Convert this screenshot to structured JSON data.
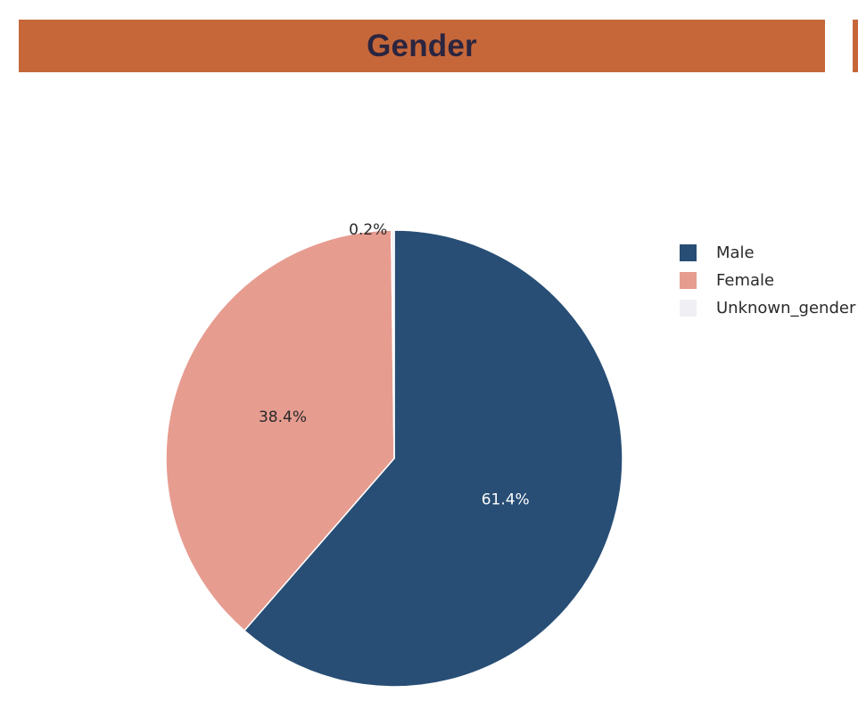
{
  "header": {
    "title": "Gender",
    "bar_color": "#c6673a",
    "title_color": "#2b2540"
  },
  "chart_data": {
    "type": "pie",
    "title": "Gender",
    "categories": [
      "Male",
      "Female",
      "Unknown_gender"
    ],
    "values": [
      61.4,
      38.4,
      0.2
    ],
    "value_labels": [
      "61.4%",
      "38.4%",
      "0.2%"
    ],
    "colors": [
      "#284e75",
      "#e79c90",
      "#f0eff3"
    ],
    "label_colors": [
      "#ffffff",
      "#2a2a2a",
      "#2a2a2a"
    ],
    "legend_position": "right",
    "start_angle_deg": 0,
    "direction": "clockwise"
  }
}
